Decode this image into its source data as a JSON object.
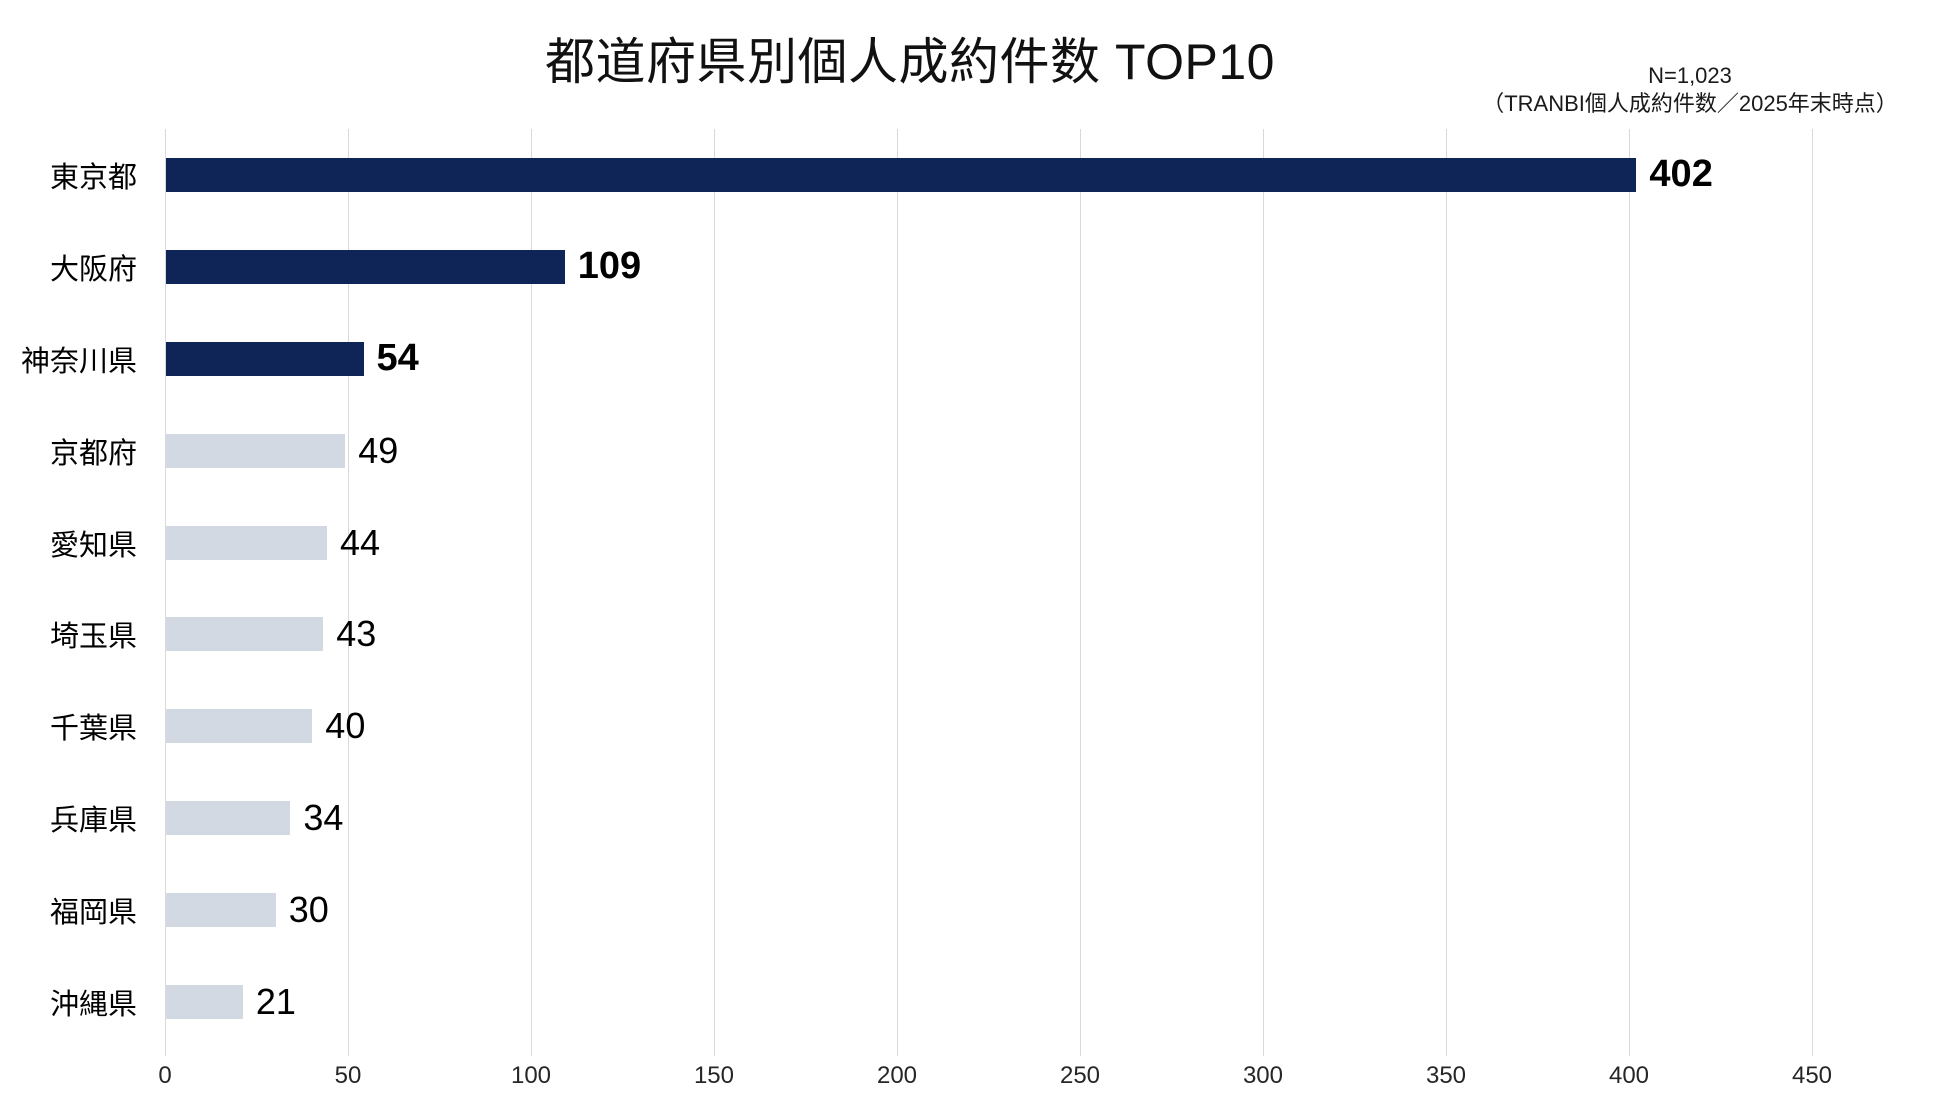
{
  "title": "都道府県別個人成約件数 TOP10",
  "annotation": {
    "line1": "N=1,023",
    "line2": "（TRANBI個人成約件数／2025年末時点）"
  },
  "chart_data": {
    "type": "bar",
    "orientation": "horizontal",
    "title": "都道府県別個人成約件数 TOP10",
    "categories": [
      "東京都",
      "大阪府",
      "神奈川県",
      "京都府",
      "愛知県",
      "埼玉県",
      "千葉県",
      "兵庫県",
      "福岡県",
      "沖縄県"
    ],
    "values": [
      402,
      109,
      54,
      49,
      44,
      43,
      40,
      34,
      30,
      21
    ],
    "data_labels": [
      "402",
      "109",
      "54",
      "49",
      "44",
      "43",
      "40",
      "34",
      "30",
      "21"
    ],
    "highlighted_top_n": 3,
    "xlim": [
      0,
      450
    ],
    "xticks": [
      0,
      50,
      100,
      150,
      200,
      250,
      300,
      350,
      400,
      450
    ],
    "grid": true,
    "legend": false,
    "colors": {
      "bar_highlight": "#0f2557",
      "bar_normal": "#d3d9e3",
      "gridline": "#d9d9d9",
      "label": "#000000"
    }
  }
}
